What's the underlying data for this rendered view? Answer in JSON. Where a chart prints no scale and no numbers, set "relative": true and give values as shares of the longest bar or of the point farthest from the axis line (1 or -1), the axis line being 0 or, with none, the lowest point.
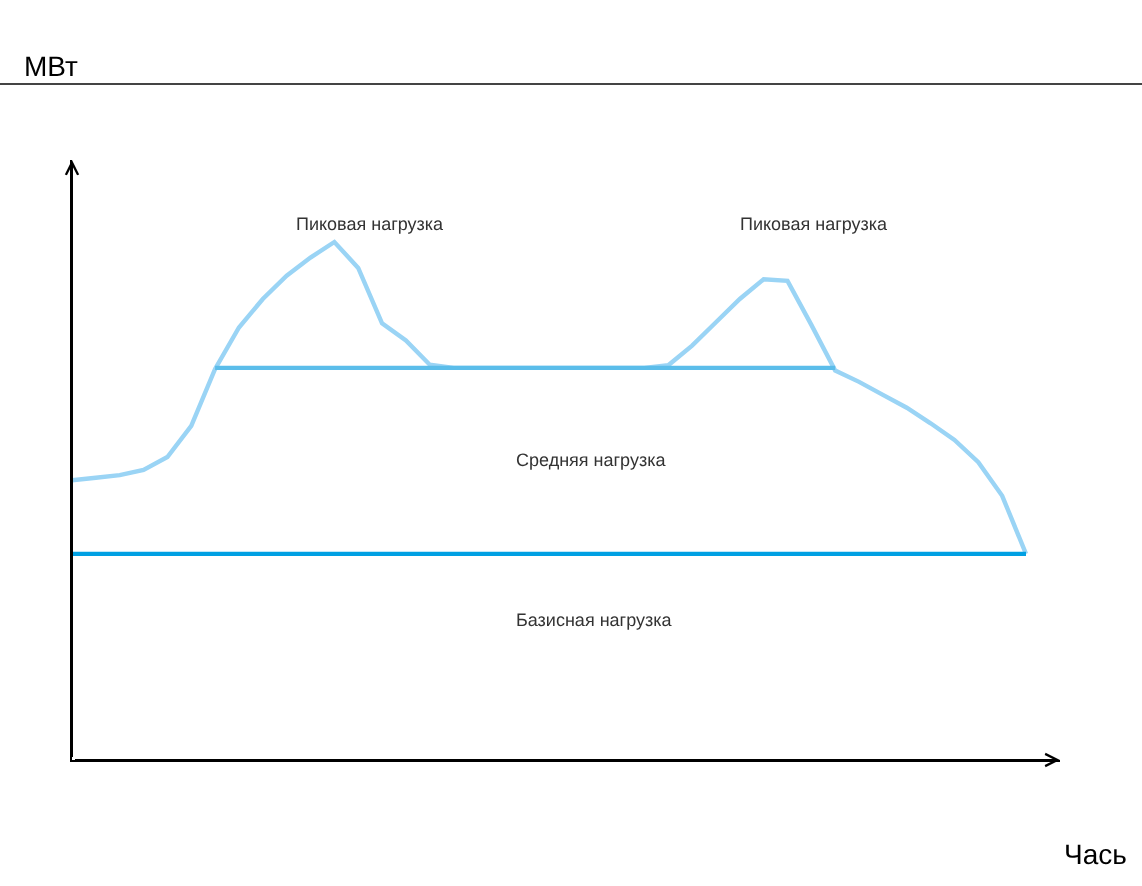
{
  "chart_data": {
    "type": "line",
    "relative": true,
    "xlabel": "Чась",
    "categories": [
      null,
      null,
      null,
      null,
      null,
      null,
      null,
      null,
      null,
      null,
      null,
      null,
      null,
      null,
      null,
      null,
      null,
      null,
      null,
      null,
      null,
      null,
      null,
      null,
      null,
      null,
      null,
      null,
      null,
      null,
      null,
      null,
      null,
      null,
      null,
      null,
      null,
      null,
      null,
      null,
      null
    ],
    "marker": "none",
    "line_style": "solid",
    "series": [
      {
        "color": "#9ad4f5",
        "values": [
          0.54,
          0.545,
          0.55,
          0.56,
          0.585,
          0.645,
          0.755,
          0.835,
          0.89,
          0.935,
          0.97,
          1.0,
          0.95,
          0.843,
          0.81,
          0.763,
          0.757,
          0.757,
          0.757,
          0.757,
          0.757,
          0.757,
          0.757,
          0.757,
          0.757,
          0.762,
          0.8,
          0.845,
          0.89,
          0.928,
          0.925,
          0.84,
          0.752,
          0.73,
          0.705,
          0.68,
          0.65,
          0.618,
          0.575,
          0.51,
          0.398
        ]
      },
      {
        "color": "#5bbdea",
        "values": [
          null,
          null,
          null,
          null,
          null,
          null,
          0.757,
          0.757,
          0.757,
          0.757,
          0.757,
          0.757,
          0.757,
          0.757,
          0.757,
          0.757,
          0.757,
          0.757,
          0.757,
          0.757,
          0.757,
          0.757,
          0.757,
          0.757,
          0.757,
          0.757,
          0.757,
          0.757,
          0.757,
          0.757,
          0.757,
          0.757,
          0.757,
          null,
          null,
          null,
          null,
          null,
          null,
          null,
          null
        ]
      },
      {
        "color": "#00a0e3",
        "values": [
          0.398,
          0.398,
          0.398,
          0.398,
          0.398,
          0.398,
          0.398,
          0.398,
          0.398,
          0.398,
          0.398,
          0.398,
          0.398,
          0.398,
          0.398,
          0.398,
          0.398,
          0.398,
          0.398,
          0.398,
          0.398,
          0.398,
          0.398,
          0.398,
          0.398,
          0.398,
          0.398,
          0.398,
          0.398,
          0.398,
          0.398,
          0.398,
          0.398,
          0.398,
          0.398,
          0.398,
          0.398,
          0.398,
          0.398,
          0.398,
          0.398
        ]
      }
    ],
    "annotations": [
      "МВт",
      "Пиковая нагрузка",
      "Пиковая нагрузка",
      "Средняя нагрузка",
      "Базисная нагрузка"
    ]
  }
}
